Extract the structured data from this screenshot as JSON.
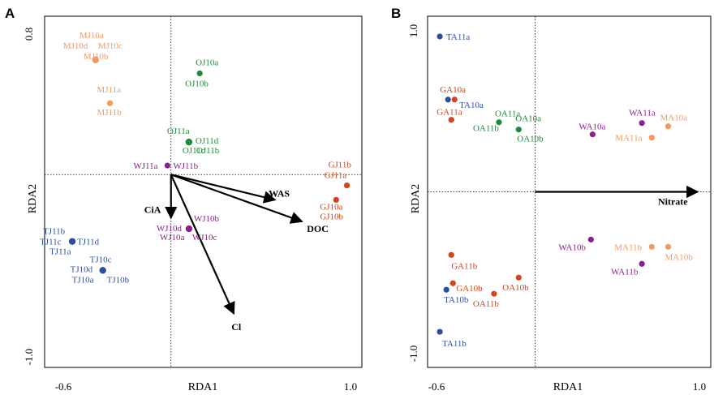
{
  "colors": {
    "blue": "#2b4ea2",
    "green": "#1e8a3a",
    "purple": "#8e1f8e",
    "red": "#d4431c",
    "orange": "#f39a63"
  },
  "chart_data": [
    {
      "panel": "A",
      "type": "scatter",
      "xlabel": "RDA1",
      "ylabel": "RDA2",
      "xlim": [
        -0.6,
        1.0
      ],
      "ylim": [
        -1.0,
        0.8
      ],
      "x_tick_labels": [
        "-0.6",
        "1.0"
      ],
      "y_tick_labels": [
        "0.8",
        "-1.0"
      ],
      "grid": false,
      "points": [
        {
          "x": -0.42,
          "y": 0.635,
          "color": "orange",
          "labels": [
            "MJ10a",
            "MJ10d",
            "MJ10c",
            "MJ10b"
          ]
        },
        {
          "x": -0.34,
          "y": 0.395,
          "color": "orange",
          "labels": [
            "MJ11a",
            "MJ11b"
          ]
        },
        {
          "x": 0.16,
          "y": 0.56,
          "color": "green",
          "labels": [
            "OJ10a",
            "OJ10b"
          ]
        },
        {
          "x": 0.1,
          "y": 0.18,
          "color": "green",
          "labels": [
            "OJ11a",
            "OJ11d",
            "OJ11c",
            "OJ11b"
          ]
        },
        {
          "x": -0.02,
          "y": 0.05,
          "color": "purple",
          "labels": [
            "WJ11a",
            "WJ11b"
          ]
        },
        {
          "x": 0.1,
          "y": -0.3,
          "color": "purple",
          "labels": [
            "WJ10b",
            "WJ10d",
            "WJ10a",
            "WJ10c"
          ]
        },
        {
          "x": 0.98,
          "y": -0.06,
          "color": "red",
          "labels": [
            "GJ11b",
            "GJ11a"
          ]
        },
        {
          "x": 0.92,
          "y": -0.14,
          "color": "red",
          "labels": [
            "GJ10a",
            "GJ10b"
          ]
        },
        {
          "x": -0.55,
          "y": -0.37,
          "color": "blue",
          "labels": [
            "TJ11b",
            "TJ11c",
            "TJ11d",
            "TJ11a"
          ]
        },
        {
          "x": -0.38,
          "y": -0.53,
          "color": "blue",
          "labels": [
            "TJ10c",
            "TJ10d",
            "TJ10a",
            "TJ10b"
          ]
        }
      ],
      "vectors": [
        {
          "name": "CiA",
          "x": 0.0,
          "y": -0.24
        },
        {
          "name": "WAS",
          "x": 0.58,
          "y": -0.14
        },
        {
          "name": "DOC",
          "x": 0.73,
          "y": -0.26
        },
        {
          "name": "Cl",
          "x": 0.35,
          "y": -0.77
        }
      ]
    },
    {
      "panel": "B",
      "type": "scatter",
      "xlabel": "RDA1",
      "ylabel": "RDA2",
      "xlim": [
        -0.6,
        1.0
      ],
      "ylim": [
        -1.0,
        1.0
      ],
      "x_tick_labels": [
        "-0.6",
        "1.0"
      ],
      "y_tick_labels": [
        "1.0",
        "-1.0"
      ],
      "grid": false,
      "points": [
        {
          "x": -0.58,
          "y": 0.96,
          "color": "blue",
          "labels": [
            "TA11a"
          ]
        },
        {
          "x": -0.53,
          "y": 0.57,
          "color": "blue",
          "labels": [
            "TA10a"
          ]
        },
        {
          "x": -0.49,
          "y": 0.57,
          "color": "red",
          "labels": [
            "GA10a"
          ]
        },
        {
          "x": -0.51,
          "y": 0.445,
          "color": "red",
          "labels": [
            "GA11a"
          ]
        },
        {
          "x": -0.22,
          "y": 0.43,
          "color": "green",
          "labels": [
            "OA11a",
            "OA11b"
          ]
        },
        {
          "x": -0.1,
          "y": 0.385,
          "color": "green",
          "labels": [
            "OA10a",
            "OA10b"
          ]
        },
        {
          "x": 0.35,
          "y": 0.355,
          "color": "purple",
          "labels": [
            "WA10a"
          ]
        },
        {
          "x": 0.65,
          "y": 0.425,
          "color": "purple",
          "labels": [
            "WA11a"
          ]
        },
        {
          "x": 0.81,
          "y": 0.405,
          "color": "orange",
          "labels": [
            "MA10a"
          ]
        },
        {
          "x": 0.71,
          "y": 0.335,
          "color": "orange",
          "labels": [
            "MA11a"
          ]
        },
        {
          "x": 0.34,
          "y": -0.295,
          "color": "purple",
          "labels": [
            "WA10b"
          ]
        },
        {
          "x": 0.65,
          "y": -0.445,
          "color": "purple",
          "labels": [
            "WA11b"
          ]
        },
        {
          "x": 0.71,
          "y": -0.34,
          "color": "orange",
          "labels": [
            "MA11b"
          ]
        },
        {
          "x": 0.81,
          "y": -0.34,
          "color": "orange",
          "labels": [
            "MA10b"
          ]
        },
        {
          "x": -0.51,
          "y": -0.39,
          "color": "red",
          "labels": [
            "GA11b"
          ]
        },
        {
          "x": -0.1,
          "y": -0.53,
          "color": "red",
          "labels": [
            "OA10b"
          ]
        },
        {
          "x": -0.5,
          "y": -0.565,
          "color": "red",
          "labels": [
            "GA10b"
          ]
        },
        {
          "x": -0.25,
          "y": -0.63,
          "color": "red",
          "labels": [
            "OA11b"
          ]
        },
        {
          "x": -0.54,
          "y": -0.605,
          "color": "blue",
          "labels": [
            "TA10b"
          ]
        },
        {
          "x": -0.58,
          "y": -0.865,
          "color": "blue",
          "labels": [
            "TA11b"
          ]
        }
      ],
      "vectors": [
        {
          "name": "Nitrate",
          "x": 0.99,
          "y": 0.0
        }
      ]
    }
  ]
}
